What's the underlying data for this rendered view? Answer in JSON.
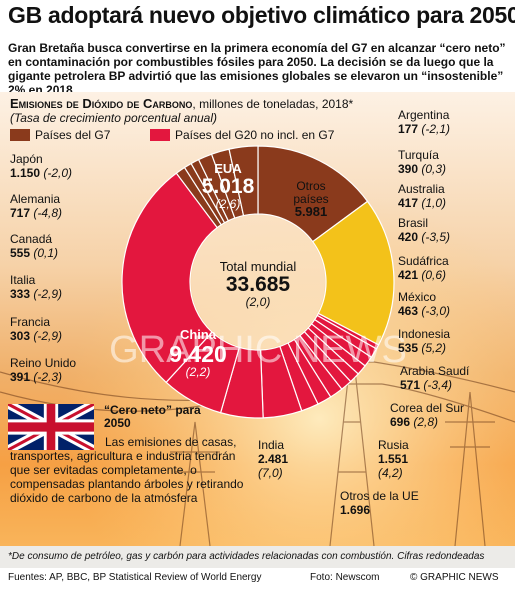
{
  "headline": "GB adoptará nuevo objetivo climático para 2050",
  "standfirst": "Gran Bretaña busca convertirse en la primera economía del G7 en alcanzar “cero neto” en contaminación por combustibles fósiles para 2050. La decisión se da luego que la gigante petrolera BP advirtió que las emisiones globales se elevaron un “insostenible” 2% en 2018",
  "chart_data": {
    "type": "pie",
    "title": "Emisiones de Dióxido de Carbono",
    "title_suffix": ", millones de toneladas, 2018*",
    "subtitle": "(Tasa de crecimiento porcentual anual)",
    "legend": [
      {
        "label": "Países del G7",
        "color": "#8a3a1c"
      },
      {
        "label": "Países del G20 no incl. en G7",
        "color": "#e3173e"
      }
    ],
    "total": {
      "label": "Total mundial",
      "value": "33.685",
      "growth": "(2,0)"
    },
    "slices": [
      {
        "name": "EUA",
        "value": 5018,
        "display": "5.018",
        "growth": "(2,6)",
        "group": "G7"
      },
      {
        "name": "Otros países",
        "value": 5981,
        "display": "5.981",
        "growth": "",
        "group": "otros"
      },
      {
        "name": "Argentina",
        "value": 177,
        "display": "177",
        "growth": "(-2,1)",
        "group": "G20"
      },
      {
        "name": "Turquía",
        "value": 390,
        "display": "390",
        "growth": "(0,3)",
        "group": "G20"
      },
      {
        "name": "Australia",
        "value": 417,
        "display": "417",
        "growth": "(1,0)",
        "group": "G20"
      },
      {
        "name": "Brasil",
        "value": 420,
        "display": "420",
        "growth": "(-3,5)",
        "group": "G20"
      },
      {
        "name": "Sudáfrica",
        "value": 421,
        "display": "421",
        "growth": "(0,6)",
        "group": "G20"
      },
      {
        "name": "México",
        "value": 463,
        "display": "463",
        "growth": "(-3,0)",
        "group": "G20"
      },
      {
        "name": "Indonesia",
        "value": 535,
        "display": "535",
        "growth": "(5,2)",
        "group": "G20"
      },
      {
        "name": "Arabia Saudí",
        "value": 571,
        "display": "571",
        "growth": "(-3,4)",
        "group": "G20"
      },
      {
        "name": "Corea del Sur",
        "value": 696,
        "display": "696",
        "growth": "(2,8)",
        "group": "G20"
      },
      {
        "name": "Rusia",
        "value": 1551,
        "display": "1.551",
        "growth": "(4,2)",
        "group": "G20"
      },
      {
        "name": "Otros de la UE",
        "value": 1696,
        "display": "1.696",
        "growth": "",
        "group": "G20"
      },
      {
        "name": "India",
        "value": 2481,
        "display": "2.481",
        "growth": "(7,0)",
        "group": "G20"
      },
      {
        "name": "China",
        "value": 9420,
        "display": "9.420",
        "growth": "(2,2)",
        "group": "G20"
      },
      {
        "name": "Reino Unido",
        "value": 391,
        "display": "391",
        "growth": "(-2,3)",
        "group": "G7"
      },
      {
        "name": "Francia",
        "value": 303,
        "display": "303",
        "growth": "(-2,9)",
        "group": "G7"
      },
      {
        "name": "Italia",
        "value": 333,
        "display": "333",
        "growth": "(-2,9)",
        "group": "G7"
      },
      {
        "name": "Canadá",
        "value": 555,
        "display": "555",
        "growth": "(0,1)",
        "group": "G7"
      },
      {
        "name": "Alemania",
        "value": 717,
        "display": "717",
        "growth": "(-4,8)",
        "group": "G7"
      },
      {
        "name": "Japón",
        "value": 1150,
        "display": "1.150",
        "growth": "(-2,0)",
        "group": "G7"
      }
    ],
    "colors": {
      "G7": "#8a3a1c",
      "G20": "#e3173e",
      "otros": "#f3c21a",
      "separator": "#ffffff"
    }
  },
  "note": {
    "title": "“Cero neto” para 2050",
    "body": "Las emisiones de casas, transportes, agricultura e industria tendrán que ser evitadas completamente, o compensadas plantando árboles y retirando dióxido de carbono de la atmósfera"
  },
  "watermark": "GRAPHIC NEWS",
  "footnote": "*De consumo de petróleo, gas y carbón para actividades relacionadas con combustión. Cifras redondeadas",
  "sources": "Fuentes: AP, BBC, BP Statistical Review of World Energy",
  "photo_credit": "Foto: Newscom",
  "copyright": "© GRAPHIC NEWS"
}
